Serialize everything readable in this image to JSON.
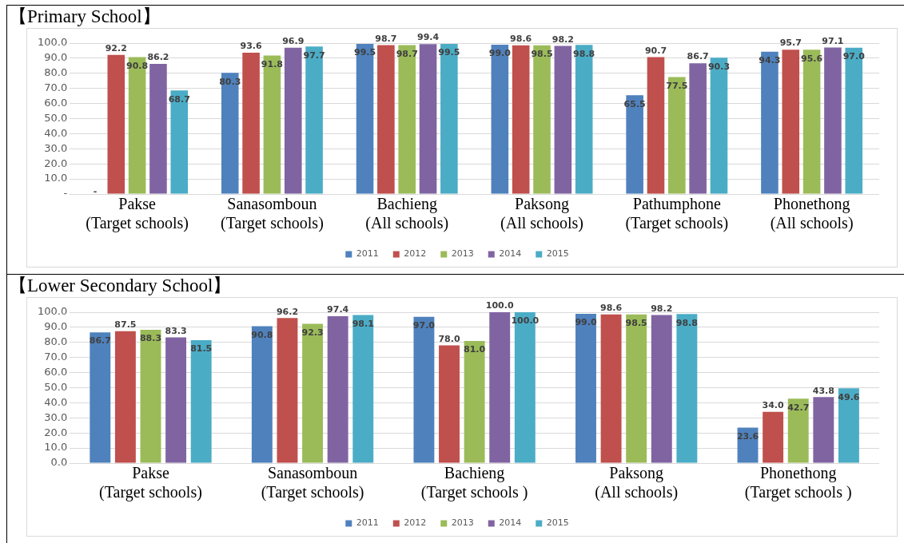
{
  "chart_data": [
    {
      "type": "bar",
      "title": "【Primary School】",
      "categories": [
        "Pakse\n(Target schools)",
        "Sanasomboun\n(Target schools)",
        "Bachieng\n(All schools)",
        "Paksong\n(All schools)",
        "Pathumphone\n(Target schools)",
        "Phonethong\n(All schools)"
      ],
      "series": [
        {
          "name": "2011",
          "color": "#4f81bd",
          "values": [
            null,
            80.3,
            99.5,
            99.0,
            65.5,
            94.3
          ],
          "value_labels": [
            "-",
            "80.3",
            "99.5",
            "99.0",
            "65.5",
            "94.3"
          ]
        },
        {
          "name": "2012",
          "color": "#c0504d",
          "values": [
            92.2,
            93.6,
            98.7,
            98.6,
            90.7,
            95.7
          ],
          "value_labels": [
            "92.2",
            "93.6",
            "98.7",
            "98.6",
            "90.7",
            "95.7"
          ]
        },
        {
          "name": "2013",
          "color": "#9bbb59",
          "values": [
            90.8,
            91.8,
            98.7,
            98.5,
            77.5,
            95.6
          ],
          "value_labels": [
            "90.8",
            "91.8",
            "98.7",
            "98.5",
            "77.5",
            "95.6"
          ]
        },
        {
          "name": "2014",
          "color": "#8064a2",
          "values": [
            86.2,
            96.9,
            99.4,
            98.2,
            86.7,
            97.1
          ],
          "value_labels": [
            "86.2",
            "96.9",
            "99.4",
            "98.2",
            "86.7",
            "97.1"
          ]
        },
        {
          "name": "2015",
          "color": "#4bacc6",
          "values": [
            68.7,
            97.7,
            99.5,
            98.8,
            90.3,
            97.0
          ],
          "value_labels": [
            "68.7",
            "97.7",
            "99.5",
            "98.8",
            "90.3",
            "97.0"
          ]
        }
      ],
      "ylim": [
        0,
        100
      ],
      "yticks": [
        {
          "value": 0,
          "label": "-"
        },
        {
          "value": 10,
          "label": "10.0"
        },
        {
          "value": 20,
          "label": "20.0"
        },
        {
          "value": 30,
          "label": "30.0"
        },
        {
          "value": 40,
          "label": "40.0"
        },
        {
          "value": 50,
          "label": "50.0"
        },
        {
          "value": 60,
          "label": "60.0"
        },
        {
          "value": 70,
          "label": "70.0"
        },
        {
          "value": 80,
          "label": "80.0"
        },
        {
          "value": 90,
          "label": "90.0"
        },
        {
          "value": 100,
          "label": "100.0"
        }
      ],
      "grid": "y",
      "legend": "bottom"
    },
    {
      "type": "bar",
      "title": "【Lower Secondary School】",
      "categories": [
        "Pakse\n(Target schools)",
        "Sanasomboun\n(Target schools)",
        "Bachieng\n(Target schools )",
        "Paksong\n(All schools)",
        "Phonethong\n(Target schools )"
      ],
      "series": [
        {
          "name": "2011",
          "color": "#4f81bd",
          "values": [
            86.7,
            90.8,
            97.0,
            99.0,
            23.6
          ],
          "value_labels": [
            "86.7",
            "90.8",
            "97.0",
            "99.0",
            "23.6"
          ]
        },
        {
          "name": "2012",
          "color": "#c0504d",
          "values": [
            87.5,
            96.2,
            78.0,
            98.6,
            34.0
          ],
          "value_labels": [
            "87.5",
            "96.2",
            "78.0",
            "98.6",
            "34.0"
          ]
        },
        {
          "name": "2013",
          "color": "#9bbb59",
          "values": [
            88.3,
            92.3,
            81.0,
            98.5,
            42.7
          ],
          "value_labels": [
            "88.3",
            "92.3",
            "81.0",
            "98.5",
            "42.7"
          ]
        },
        {
          "name": "2014",
          "color": "#8064a2",
          "values": [
            83.3,
            97.4,
            100.0,
            98.2,
            43.8
          ],
          "value_labels": [
            "83.3",
            "97.4",
            "100.0",
            "98.2",
            "43.8"
          ]
        },
        {
          "name": "2015",
          "color": "#4bacc6",
          "values": [
            81.5,
            98.1,
            100.0,
            98.8,
            49.6
          ],
          "value_labels": [
            "81.5",
            "98.1",
            "100.0",
            "98.8",
            "49.6"
          ]
        }
      ],
      "ylim": [
        0,
        100
      ],
      "yticks": [
        {
          "value": 0,
          "label": "0.0"
        },
        {
          "value": 10,
          "label": "10.0"
        },
        {
          "value": 20,
          "label": "20.0"
        },
        {
          "value": 30,
          "label": "30.0"
        },
        {
          "value": 40,
          "label": "40.0"
        },
        {
          "value": 50,
          "label": "50.0"
        },
        {
          "value": 60,
          "label": "60.0"
        },
        {
          "value": 70,
          "label": "70.0"
        },
        {
          "value": 80,
          "label": "80.0"
        },
        {
          "value": 90,
          "label": "90.0"
        },
        {
          "value": 100,
          "label": "100.0"
        }
      ],
      "grid": "y",
      "legend": "bottom"
    }
  ]
}
